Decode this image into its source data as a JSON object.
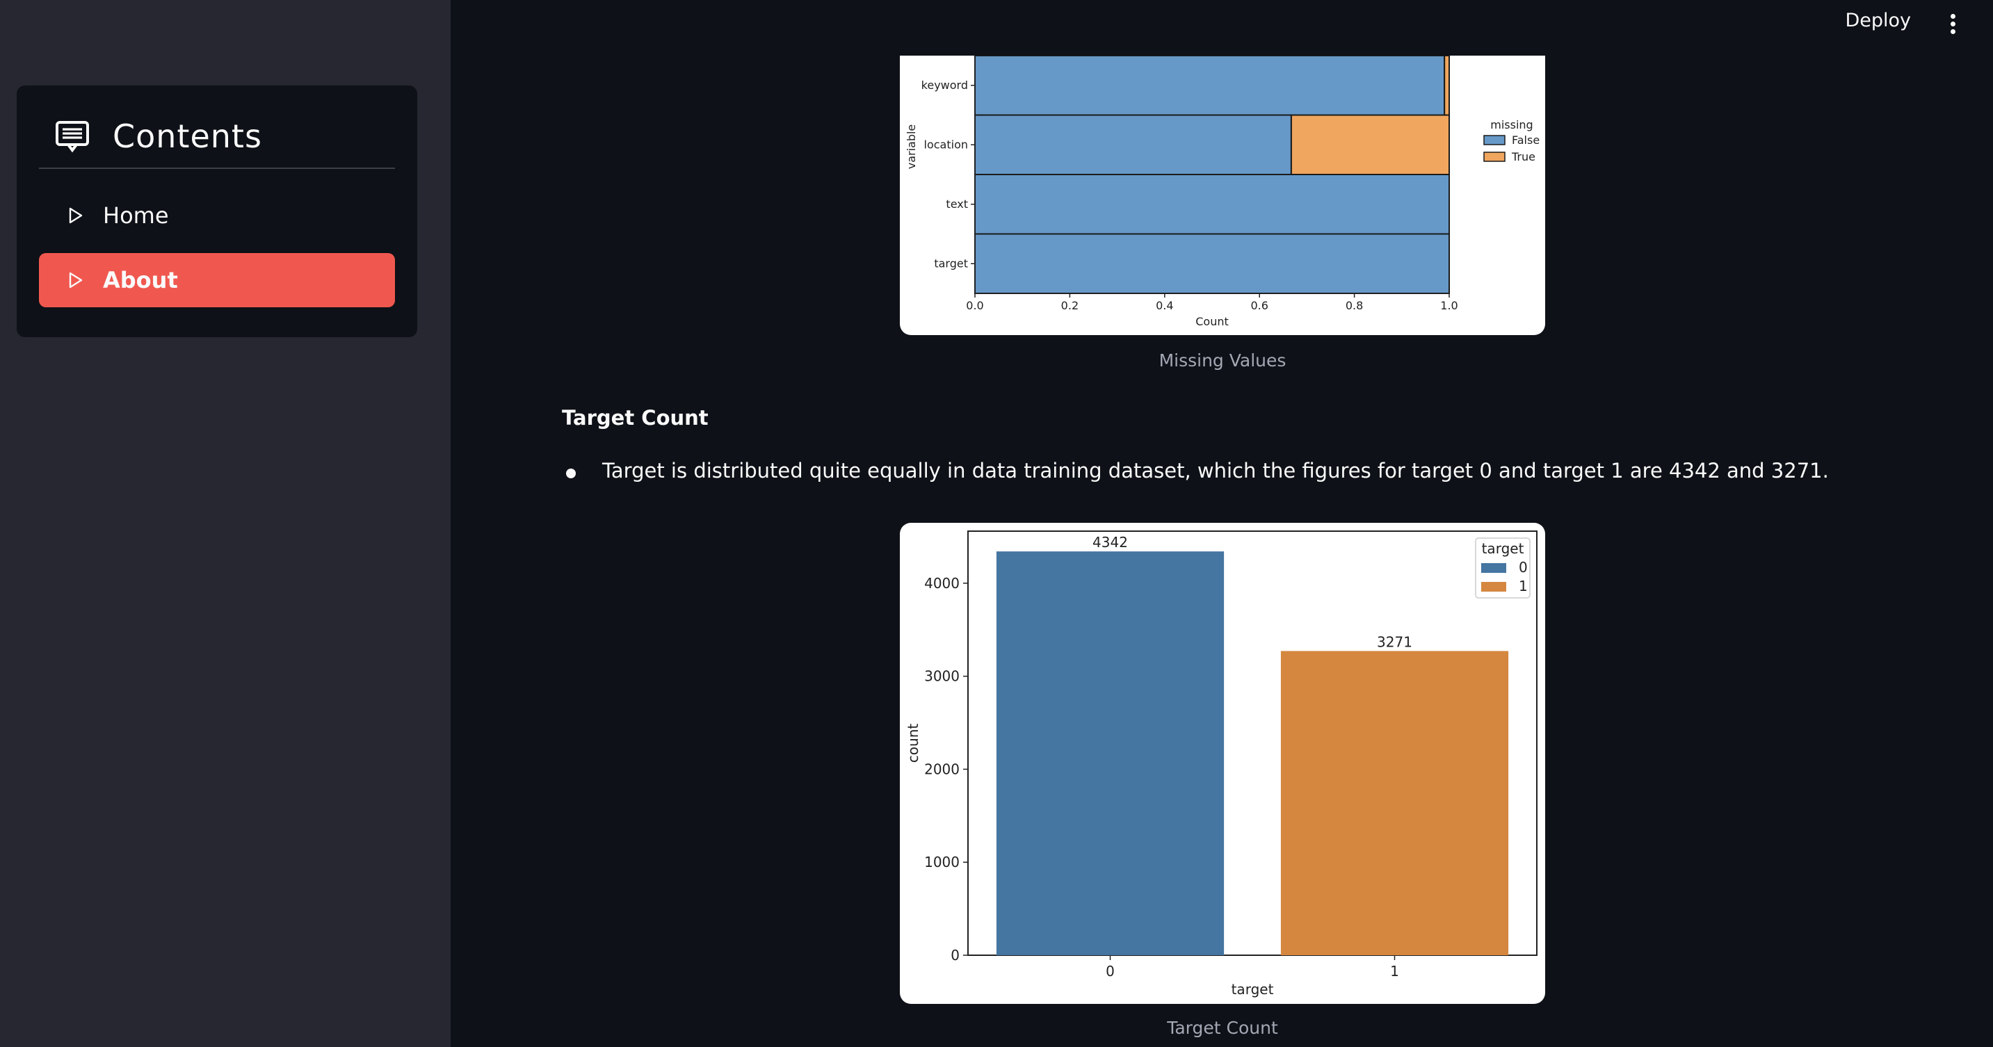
{
  "sidebar": {
    "menu_title": "Contents",
    "menu_icon": "message-icon",
    "items": [
      {
        "label": "Home",
        "icon": "play-outline-icon",
        "active": false
      },
      {
        "label": "About",
        "icon": "play-outline-icon",
        "active": true
      }
    ],
    "active_color": "#f0584f"
  },
  "header": {
    "deploy_label": "Deploy",
    "menu_icon": "kebab-icon"
  },
  "main": {
    "caption1": "Missing Values",
    "section_heading": "Target Count",
    "bullet_text": "Target is distributed quite equally in data training dataset, which the figures for target 0 and target 1 are 4342 and 3271.",
    "caption2": "Target Count"
  },
  "chart_data": [
    {
      "type": "bar",
      "orientation": "horizontal",
      "stacked": true,
      "categories": [
        "keyword",
        "location",
        "text",
        "target"
      ],
      "series": [
        {
          "name": "False",
          "values": [
            0.99,
            0.667,
            1.0,
            1.0
          ],
          "color": "#6699c8"
        },
        {
          "name": "True",
          "values": [
            0.01,
            0.333,
            0.0,
            0.0
          ],
          "color": "#f0a65e"
        }
      ],
      "xlabel": "Count",
      "ylabel": "variable",
      "xticks": [
        "0.0",
        "0.2",
        "0.4",
        "0.6",
        "0.8",
        "1.0"
      ],
      "xlim": [
        0,
        1
      ],
      "legend_title": "missing",
      "legend_position": "right"
    },
    {
      "type": "bar",
      "categories": [
        "0",
        "1"
      ],
      "values": [
        4342,
        3271
      ],
      "colors": [
        "#4575a1",
        "#d58740"
      ],
      "data_labels": [
        "4342",
        "3271"
      ],
      "xlabel": "target",
      "ylabel": "count",
      "yticks": [
        "0",
        "1000",
        "2000",
        "3000",
        "4000"
      ],
      "ylim": [
        0,
        4560
      ],
      "legend_title": "target",
      "legend_entries": [
        "0",
        "1"
      ],
      "legend_position": "top-right"
    }
  ]
}
